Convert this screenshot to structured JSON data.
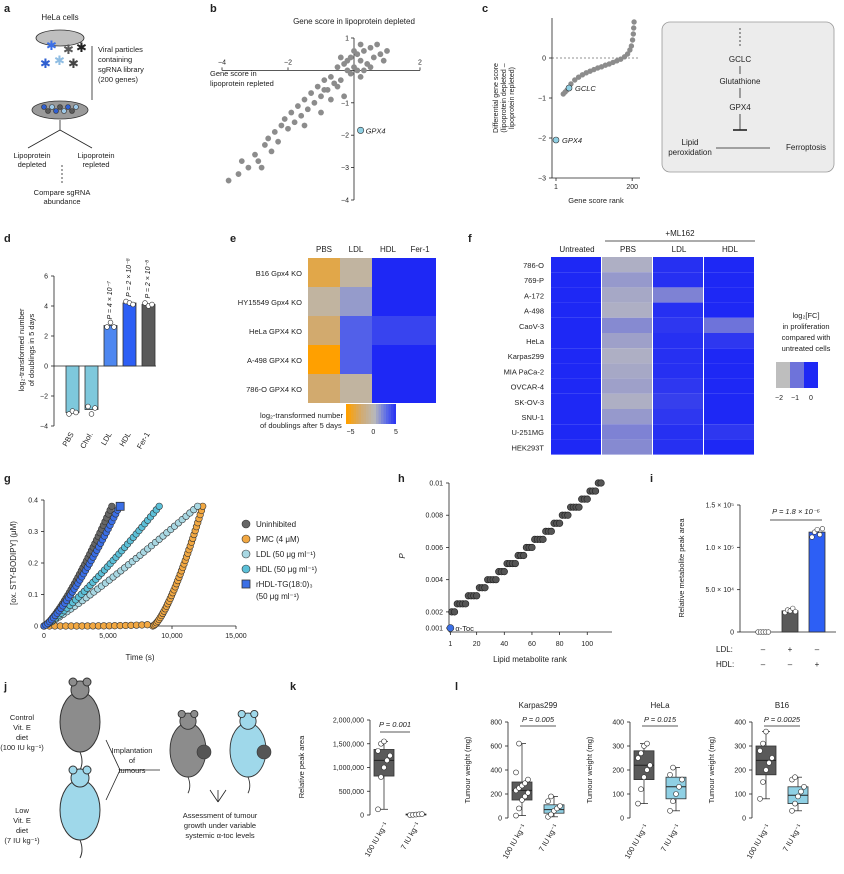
{
  "panels": {
    "a": {
      "letter": "a",
      "cells": "HeLa cells",
      "viral": [
        "Viral particles",
        "containing",
        "sgRNA library",
        "(200 genes)"
      ],
      "left": [
        "Lipoprotein",
        "depleted"
      ],
      "right": [
        "Lipoprotein",
        "repleted"
      ],
      "compare": [
        "Compare sgRNA",
        "abundance"
      ]
    },
    "b": {
      "letter": "b",
      "ytitle": "Gene score in lipoprotein depleted",
      "xtitle": [
        "Gene score in",
        "lipoprotein repleted"
      ],
      "label": "GPX4"
    },
    "c": {
      "letter": "c",
      "ylabel": [
        "Differential gene score",
        "(lipoprotein depleted –",
        "lipoprotein repleted)"
      ],
      "xlabel": "Gene score rank",
      "lab1": "GCLC",
      "lab2": "GPX4",
      "pathway": {
        "n1": "GCLC",
        "n2": "Glutathione",
        "n3": "GPX4",
        "n4": [
          "Lipid",
          "peroxidation"
        ],
        "n5": "Ferroptosis"
      }
    },
    "d": {
      "letter": "d",
      "ylabel": [
        "log₂-transformed number",
        "of doublings in 5 days"
      ],
      "cats": [
        "PBS",
        "Chol.",
        "LDL",
        "HDL",
        "Fer-1"
      ],
      "pv": [
        "P = 4 × 10⁻⁷",
        "P = 2 × 10⁻⁸",
        "P = 2 × 10⁻⁸"
      ]
    },
    "e": {
      "letter": "e",
      "cols": [
        "PBS",
        "LDL",
        "HDL",
        "Fer-1"
      ],
      "rows": [
        "B16 Gpx4 KO",
        "HY15549 Gpx4 KO",
        "HeLa GPX4 KO",
        "A-498 GPX4 KO",
        "786-O GPX4 KO"
      ],
      "legend": [
        "log₂-transformed number",
        "of doublings after 5 days"
      ]
    },
    "f": {
      "letter": "f",
      "group": "+ML162",
      "cols": [
        "Untreated",
        "PBS",
        "LDL",
        "HDL"
      ],
      "rows": [
        "786-O",
        "769-P",
        "A-172",
        "A-498",
        "CaoV-3",
        "HeLa",
        "Karpas299",
        "MIA PaCa-2",
        "OVCAR-4",
        "SK-OV-3",
        "SNU-1",
        "U-251MG",
        "HEK293T"
      ],
      "legend": [
        "log₂[FC]",
        "in proliferation",
        "compared with",
        "untreated cells"
      ]
    },
    "g": {
      "letter": "g",
      "ylabel": "[ox. STY-BODIPY] (μM)",
      "xlabel": "Time (s)",
      "legend": [
        "Uninhibited",
        "PMC (4 μM)",
        "LDL (50 μg ml⁻¹)",
        "HDL (50 μg ml⁻¹)",
        "rHDL-TG(18:0)₃",
        "(50 μg ml⁻¹)"
      ]
    },
    "h": {
      "letter": "h",
      "ylabel": "P",
      "xlabel": "Lipid metabolite rank",
      "annot": "α-Toc"
    },
    "i": {
      "letter": "i",
      "ylabel": "Relative metabolite peak area",
      "pval": "P = 1.8 × 10⁻⁶",
      "ldl_label": "LDL:",
      "hdl_label": "HDL:",
      "ldl": [
        "–",
        "+",
        "–"
      ],
      "hdl": [
        "–",
        "–",
        "+"
      ]
    },
    "j": {
      "letter": "j",
      "control": [
        "Control",
        "Vit. E",
        "diet",
        "(100 IU kg⁻¹)"
      ],
      "low": [
        "Low",
        "Vit. E",
        "diet",
        "(7 IU kg⁻¹)"
      ],
      "impl": [
        "Implantation",
        "of",
        "tumours"
      ],
      "assess": [
        "Assessment of tumour",
        "growth under variable",
        "systemic α-toc levels"
      ]
    },
    "k": {
      "letter": "k",
      "ylabel": "Relative peak area",
      "pval": "P = 0.001",
      "cats": [
        "100 IU kg⁻¹",
        "7 IU kg⁻¹"
      ]
    },
    "l": {
      "letter": "l",
      "ylabel": "Tumour weight (mg)",
      "cats": [
        "100 IU kg⁻¹",
        "7 IU kg⁻¹"
      ],
      "titles": [
        "Karpas299",
        "HeLa",
        "B16"
      ],
      "pvals": [
        "P = 0.005",
        "P = 0.015",
        "P = 0.0025"
      ]
    }
  },
  "chart_data": [
    {
      "type": "scatter",
      "panel": "b",
      "xlim": [
        -4,
        2
      ],
      "ylim": [
        -4,
        1
      ],
      "xticks": [
        -4,
        -2,
        2
      ],
      "yticks": [
        1,
        -1,
        -2,
        -3,
        -4
      ],
      "highlight": {
        "name": "GPX4",
        "x": 0.2,
        "y": -1.85
      },
      "points": [
        [
          -3.8,
          -3.4
        ],
        [
          -3.4,
          -2.8
        ],
        [
          -3.2,
          -3.0
        ],
        [
          -3.0,
          -2.6
        ],
        [
          -2.9,
          -2.8
        ],
        [
          -2.7,
          -2.3
        ],
        [
          -2.6,
          -2.1
        ],
        [
          -2.5,
          -2.5
        ],
        [
          -2.4,
          -1.9
        ],
        [
          -2.3,
          -2.2
        ],
        [
          -2.2,
          -1.7
        ],
        [
          -2.1,
          -1.5
        ],
        [
          -2.0,
          -1.8
        ],
        [
          -1.9,
          -1.3
        ],
        [
          -1.8,
          -1.6
        ],
        [
          -1.7,
          -1.1
        ],
        [
          -1.6,
          -1.4
        ],
        [
          -1.5,
          -0.9
        ],
        [
          -1.4,
          -1.2
        ],
        [
          -1.3,
          -0.7
        ],
        [
          -1.2,
          -1.0
        ],
        [
          -1.1,
          -0.5
        ],
        [
          -1.0,
          -0.8
        ],
        [
          -0.9,
          -0.3
        ],
        [
          -0.8,
          -0.6
        ],
        [
          -0.7,
          -0.2
        ],
        [
          -0.6,
          -0.4
        ],
        [
          -0.5,
          0.1
        ],
        [
          -0.4,
          -0.3
        ],
        [
          -0.3,
          0.2
        ],
        [
          -0.2,
          0.0
        ],
        [
          -0.1,
          0.4
        ],
        [
          0.0,
          0.1
        ],
        [
          0.1,
          0.5
        ],
        [
          0.2,
          0.3
        ],
        [
          0.3,
          0.6
        ],
        [
          0.4,
          0.2
        ],
        [
          0.5,
          0.7
        ],
        [
          0.6,
          0.4
        ],
        [
          0.7,
          0.8
        ],
        [
          0.8,
          0.5
        ],
        [
          0.9,
          0.3
        ],
        [
          -0.5,
          -0.5
        ],
        [
          -0.3,
          -0.8
        ],
        [
          0.2,
          -0.2
        ],
        [
          -0.1,
          -0.1
        ],
        [
          -0.7,
          -0.9
        ],
        [
          -1.5,
          -1.7
        ],
        [
          -2.8,
          -3.0
        ],
        [
          -3.5,
          -3.2
        ],
        [
          0.1,
          0.0
        ],
        [
          0.3,
          0.0
        ],
        [
          -0.2,
          0.3
        ],
        [
          0.5,
          0.1
        ],
        [
          1.0,
          0.6
        ],
        [
          -1.0,
          -1.3
        ],
        [
          -0.9,
          -0.6
        ],
        [
          -0.4,
          0.4
        ],
        [
          0.0,
          0.6
        ],
        [
          0.2,
          0.8
        ]
      ]
    },
    {
      "type": "scatter",
      "panel": "c",
      "xlim": [
        1,
        210
      ],
      "ylim": [
        -3,
        1
      ],
      "xticks": [
        1,
        200
      ],
      "yticks": [
        0,
        -1,
        -2,
        -3
      ],
      "highlights": [
        {
          "name": "GCLC",
          "x": 35,
          "y": -0.75
        },
        {
          "name": "GPX4",
          "x": 1,
          "y": -2.05
        }
      ],
      "curve": [
        [
          40,
          -0.65
        ],
        [
          50,
          -0.55
        ],
        [
          60,
          -0.48
        ],
        [
          70,
          -0.42
        ],
        [
          80,
          -0.37
        ],
        [
          90,
          -0.33
        ],
        [
          100,
          -0.29
        ],
        [
          110,
          -0.25
        ],
        [
          120,
          -0.22
        ],
        [
          130,
          -0.18
        ],
        [
          140,
          -0.15
        ],
        [
          150,
          -0.11
        ],
        [
          160,
          -0.07
        ],
        [
          170,
          -0.03
        ],
        [
          180,
          0.03
        ],
        [
          188,
          0.1
        ],
        [
          194,
          0.2
        ],
        [
          198,
          0.3
        ],
        [
          201,
          0.45
        ],
        [
          203,
          0.6
        ],
        [
          204,
          0.75
        ],
        [
          205,
          0.9
        ],
        [
          20,
          -0.9
        ],
        [
          25,
          -0.85
        ],
        [
          30,
          -0.8
        ]
      ]
    },
    {
      "type": "bar",
      "panel": "d",
      "categories": [
        "PBS",
        "Chol.",
        "LDL",
        "HDL",
        "Fer-1"
      ],
      "values": [
        -3.1,
        -2.9,
        2.7,
        4.2,
        4.1
      ],
      "ylim": [
        -4,
        6
      ],
      "yticks": [
        -4,
        -2,
        0,
        2,
        4,
        6
      ],
      "colors": [
        "#7ec8dc",
        "#7ec8dc",
        "#4e87f0",
        "#2d5ff5",
        "#5a5a5a"
      ],
      "points": [
        [
          -3.2,
          -3.0,
          -3.1
        ],
        [
          -2.7,
          -3.2,
          -2.8
        ],
        [
          2.6,
          2.9,
          2.6
        ],
        [
          4.3,
          4.2,
          4.1
        ],
        [
          4.2,
          4.0,
          4.1
        ]
      ]
    },
    {
      "type": "heatmap",
      "panel": "e",
      "values": [
        [
          -4,
          -1,
          5,
          5
        ],
        [
          -1,
          1,
          5,
          5
        ],
        [
          -3,
          3,
          4,
          4
        ],
        [
          -6,
          3,
          5,
          5
        ],
        [
          -3,
          -1,
          5,
          5
        ]
      ],
      "colorbar": [
        -5,
        0,
        5
      ]
    },
    {
      "type": "heatmap",
      "panel": "f",
      "values": [
        [
          0,
          -1.8,
          -0.1,
          0
        ],
        [
          0,
          -1.5,
          -0.1,
          0
        ],
        [
          0,
          -1.7,
          -1.2,
          0
        ],
        [
          0,
          -1.8,
          -0.1,
          0
        ],
        [
          0,
          -1.3,
          -0.2,
          -1.0
        ],
        [
          0,
          -1.6,
          -0.1,
          -0.2
        ],
        [
          0,
          -1.8,
          -0.1,
          0
        ],
        [
          0,
          -1.7,
          -0.1,
          0
        ],
        [
          0,
          -1.6,
          -0.2,
          0
        ],
        [
          0,
          -1.8,
          -0.3,
          0
        ],
        [
          0,
          -1.5,
          -0.2,
          0
        ],
        [
          0,
          -1.2,
          -0.1,
          -0.2
        ],
        [
          0,
          -1.3,
          -0.1,
          0
        ]
      ],
      "colorbar": [
        -2,
        -1,
        0
      ]
    },
    {
      "type": "line",
      "panel": "g",
      "xlim": [
        0,
        15000
      ],
      "ylim": [
        0,
        0.4
      ],
      "xticks": [
        0,
        5000,
        10000,
        15000
      ],
      "yticks": [
        0,
        0.1,
        0.2,
        0.3,
        0.4
      ],
      "xticklabels": [
        "0",
        "5,000",
        "10,000",
        "15,000"
      ],
      "series": [
        {
          "name": "Uninhibited",
          "color": "#666666",
          "x": [
            0,
            5300
          ],
          "k": 1.0
        },
        {
          "name": "PMC (4 μM)",
          "color": "#f2a842",
          "x": [
            8500,
            12400
          ],
          "k": 1.0
        },
        {
          "name": "LDL (50 μg ml⁻¹)",
          "color": "#a9d8e3",
          "x": [
            0,
            12000
          ],
          "k": 0.4
        },
        {
          "name": "HDL (50 μg ml⁻¹)",
          "color": "#5cc0d8",
          "x": [
            0,
            9000
          ],
          "k": 0.6
        },
        {
          "name": "rHDL-TG(18:0)₃",
          "color": "#3b6fe6",
          "x": [
            0,
            5900
          ],
          "k": 0.95
        }
      ]
    },
    {
      "type": "scatter",
      "panel": "h",
      "xlim": [
        0,
        115
      ],
      "ylim": [
        0.001,
        0.01
      ],
      "xticks": [
        1,
        20,
        40,
        60,
        80,
        100
      ],
      "yticks": [
        0.001,
        0.002,
        0.004,
        0.006,
        0.008,
        0.01
      ],
      "highlight": {
        "name": "α-Toc",
        "x": 1,
        "y": 0.001
      }
    },
    {
      "type": "bar",
      "panel": "i",
      "values": [
        0,
        25000,
        118000
      ],
      "ylim": [
        0,
        150000
      ],
      "yticks": [
        0,
        50000,
        100000,
        150000
      ],
      "yticklabels": [
        "0",
        "5.0 × 10⁴",
        "1.0 × 10⁵",
        "1.5 × 10⁵"
      ],
      "colors": [
        "#ffffff",
        "#5a5a5a",
        "#2d5ff5"
      ],
      "points": [
        [
          0,
          0,
          0,
          0,
          0
        ],
        [
          23000,
          26000,
          25000,
          28000,
          24000
        ],
        [
          112000,
          118000,
          121000,
          115000,
          122000
        ]
      ]
    },
    {
      "type": "box",
      "panel": "k",
      "ylim": [
        0,
        2000000
      ],
      "yticks": [
        0,
        500000,
        1000000,
        1500000,
        2000000
      ],
      "yticklabels": [
        "0",
        "500,000",
        "1,000,000",
        "1,500,000",
        "2,000,000"
      ],
      "groups": [
        {
          "q1": 820000,
          "median": 1150000,
          "q3": 1380000,
          "min": 120000,
          "max": 1550000,
          "color": "#5a5a5a",
          "points": [
            120000,
            800000,
            1000000,
            1150000,
            1250000,
            1350000,
            1500000,
            1550000
          ]
        },
        {
          "q1": 0,
          "median": 10000,
          "q3": 20000,
          "min": 0,
          "max": 30000,
          "color": "#8fd0e4",
          "points": [
            0,
            5000,
            10000,
            15000,
            20000
          ]
        }
      ]
    },
    {
      "type": "box",
      "panel": "l-Karpas299",
      "ylim": [
        0,
        800
      ],
      "yticks": [
        0,
        200,
        400,
        600,
        800
      ],
      "groups": [
        {
          "q1": 150,
          "median": 230,
          "q3": 300,
          "min": 20,
          "max": 620,
          "color": "#5a5a5a",
          "points": [
            20,
            80,
            150,
            180,
            210,
            230,
            250,
            270,
            290,
            320,
            380,
            620
          ]
        },
        {
          "q1": 40,
          "median": 70,
          "q3": 110,
          "min": 10,
          "max": 180,
          "color": "#8fd0e4",
          "points": [
            10,
            30,
            60,
            80,
            100,
            140,
            180
          ]
        }
      ]
    },
    {
      "type": "box",
      "panel": "l-HeLa",
      "ylim": [
        0,
        400
      ],
      "yticks": [
        0,
        100,
        200,
        300,
        400
      ],
      "groups": [
        {
          "q1": 160,
          "median": 220,
          "q3": 280,
          "min": 60,
          "max": 310,
          "color": "#5a5a5a",
          "points": [
            60,
            120,
            170,
            200,
            220,
            250,
            270,
            300,
            310
          ]
        },
        {
          "q1": 80,
          "median": 130,
          "q3": 170,
          "min": 30,
          "max": 210,
          "color": "#8fd0e4",
          "points": [
            30,
            70,
            100,
            130,
            160,
            180,
            210
          ]
        }
      ]
    },
    {
      "type": "box",
      "panel": "l-B16",
      "ylim": [
        0,
        400
      ],
      "yticks": [
        0,
        100,
        200,
        300,
        400
      ],
      "groups": [
        {
          "q1": 180,
          "median": 240,
          "q3": 300,
          "min": 80,
          "max": 360,
          "color": "#5a5a5a",
          "points": [
            80,
            150,
            200,
            230,
            250,
            280,
            310,
            360
          ]
        },
        {
          "q1": 60,
          "median": 95,
          "q3": 130,
          "min": 30,
          "max": 170,
          "color": "#8fd0e4",
          "points": [
            30,
            60,
            90,
            110,
            130,
            160,
            170
          ]
        }
      ]
    }
  ]
}
